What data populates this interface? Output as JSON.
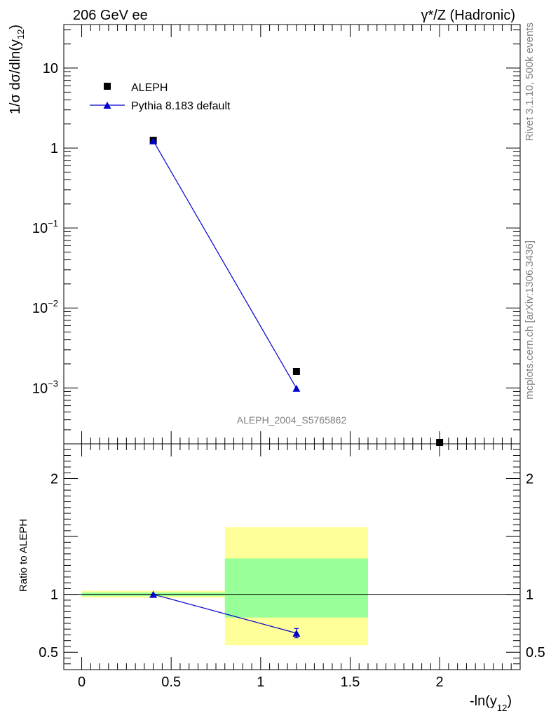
{
  "header": {
    "left": "206 GeV ee",
    "right": "γ*/Z (Hadronic)"
  },
  "side": {
    "rivet": "Rivet 3.1.10,  500k events",
    "mcplots": "mcplots.cern.ch [arXiv:1306.3436]"
  },
  "watermark": "ALEPH_2004_S5765862",
  "colors": {
    "mc": "#0000cc",
    "band_stat": "#99ff99",
    "band_total": "#ffff99",
    "data": "#000000"
  },
  "chart_data": [
    {
      "type": "scatter",
      "name": "main",
      "yscale": "log",
      "ylabel_main": "1/σ  dσ/dln(y",
      "ylabel_sub": "12",
      "ylabel_end": ")",
      "xlim": [
        -0.1,
        2.45
      ],
      "ylim": [
        0.0002,
        35
      ],
      "yticks_major": [
        {
          "value": 10,
          "label": "10"
        },
        {
          "value": 1,
          "label": "1"
        },
        {
          "value": 0.1,
          "base": "10",
          "exp": "−1"
        },
        {
          "value": 0.01,
          "base": "10",
          "exp": "−2"
        },
        {
          "value": 0.001,
          "base": "10",
          "exp": "−3"
        }
      ],
      "series": [
        {
          "name": "ALEPH",
          "marker": "square",
          "x": [
            0.4,
            1.2,
            2.0
          ],
          "y": [
            1.25,
            0.0016,
            0.00019
          ]
        },
        {
          "name": "Pythia 8.183 default",
          "marker": "triangle",
          "x": [
            0.4,
            1.2
          ],
          "y": [
            1.23,
            0.00099
          ]
        }
      ],
      "legend": {
        "position": "top-left",
        "entries": [
          "ALEPH",
          "Pythia 8.183 default"
        ]
      }
    },
    {
      "type": "scatter",
      "name": "ratio",
      "ylabel": "Ratio to ALEPH",
      "xlabel_main": "-ln(y",
      "xlabel_sub": "12",
      "xlabel_end": ")",
      "xlim": [
        -0.1,
        2.45
      ],
      "ylim": [
        0.35,
        2.3
      ],
      "yticks": [
        {
          "value": 2,
          "label": "2"
        },
        {
          "value": 1,
          "label": "1"
        },
        {
          "value": 0.5,
          "label": "0.5"
        }
      ],
      "xticks": [
        {
          "value": 0,
          "label": "0"
        },
        {
          "value": 0.5,
          "label": "0.5"
        },
        {
          "value": 1,
          "label": "1"
        },
        {
          "value": 1.5,
          "label": "1.5"
        },
        {
          "value": 2,
          "label": "2"
        }
      ],
      "bands": [
        {
          "x0": 0.0,
          "x1": 0.8,
          "total": [
            0.971,
            1.031
          ],
          "stat": [
            0.985,
            1.016
          ]
        },
        {
          "x0": 0.8,
          "x1": 1.6,
          "total": [
            0.56,
            1.58
          ],
          "stat": [
            0.8,
            1.31
          ]
        }
      ],
      "series": [
        {
          "name": "Pythia 8.183 default",
          "x": [
            0.4,
            1.2
          ],
          "y": [
            1.0,
            0.665
          ],
          "err": [
            0.0,
            0.04
          ]
        }
      ]
    }
  ]
}
